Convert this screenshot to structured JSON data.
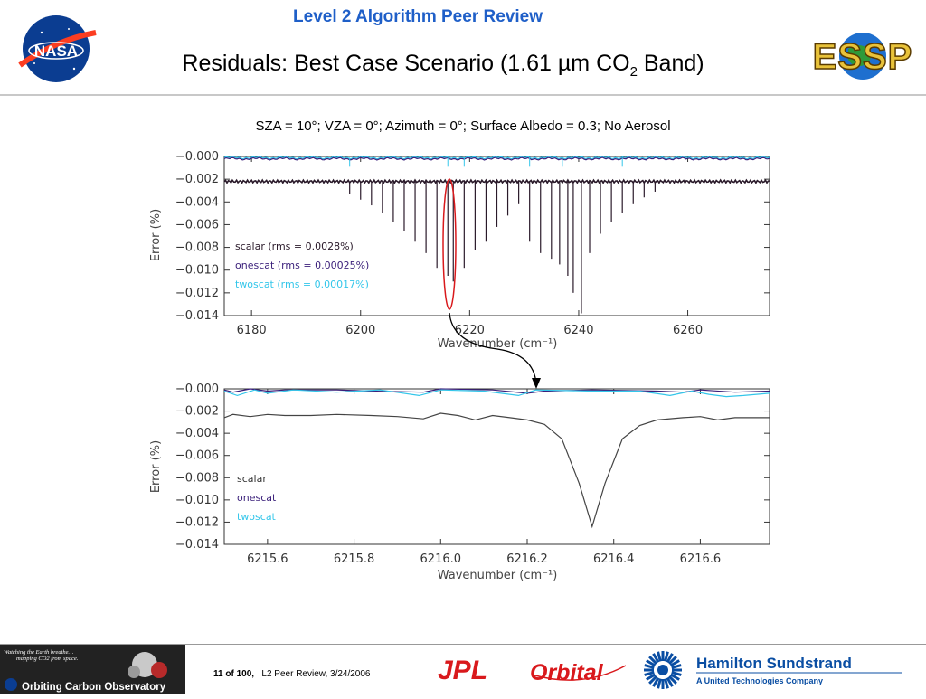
{
  "header": {
    "subtitle": "Level 2 Algorithm Peer Review",
    "title_main": "Residuals: Best Case Scenario (1.61 µm CO",
    "title_sub": "2",
    "title_end": " Band)",
    "logo_left": "NASA",
    "logo_right": "ESSP"
  },
  "caption": "SZA = 10°; VZA = 0°; Azimuth = 0°; Surface Albedo = 0.3; No Aerosol",
  "chart_data": [
    {
      "type": "line",
      "xlabel": "Wavenumber (cm⁻¹)",
      "ylabel": "Error (%)",
      "xlim": [
        6175,
        6275
      ],
      "ylim": [
        -0.014,
        0.0
      ],
      "x_ticks": [
        "6180",
        "6200",
        "6220",
        "6240",
        "6260"
      ],
      "y_ticks": [
        "−0.000",
        "−0.002",
        "−0.004",
        "−0.006",
        "−0.008",
        "−0.010",
        "−0.012",
        "−0.014"
      ],
      "series": [
        {
          "name": "scalar (rms = 0.0028%)",
          "color": "#2a1a2a",
          "baseline": -0.0022,
          "lines": [
            [
              6198,
              -0.0033
            ],
            [
              6200,
              -0.0038
            ],
            [
              6202,
              -0.0043
            ],
            [
              6204,
              -0.005
            ],
            [
              6206,
              -0.0058
            ],
            [
              6208,
              -0.0066
            ],
            [
              6210,
              -0.0075
            ],
            [
              6212,
              -0.0085
            ],
            [
              6214,
              -0.0098
            ],
            [
              6216,
              -0.0105
            ],
            [
              6217,
              -0.011
            ],
            [
              6219,
              -0.0098
            ],
            [
              6221,
              -0.0082
            ],
            [
              6223,
              -0.0075
            ],
            [
              6225,
              -0.0062
            ],
            [
              6227,
              -0.0052
            ],
            [
              6229,
              -0.0042
            ],
            [
              6231,
              -0.0075
            ],
            [
              6233,
              -0.0085
            ],
            [
              6235,
              -0.009
            ],
            [
              6236.5,
              -0.0095
            ],
            [
              6238,
              -0.0105
            ],
            [
              6239,
              -0.012
            ],
            [
              6240.5,
              -0.0138
            ],
            [
              6242,
              -0.0085
            ],
            [
              6244,
              -0.0068
            ],
            [
              6246,
              -0.0058
            ],
            [
              6248,
              -0.005
            ],
            [
              6250,
              -0.0042
            ],
            [
              6252,
              -0.0036
            ],
            [
              6254,
              -0.0031
            ]
          ]
        },
        {
          "name": "onescat (rms = 0.00025%)",
          "color": "#3a1f7a",
          "baseline": -0.0002
        },
        {
          "name": "twoscat (rms = 0.00017%)",
          "color": "#33c6ea",
          "baseline": -0.0001
        }
      ]
    },
    {
      "type": "line",
      "xlabel": "Wavenumber (cm⁻¹)",
      "ylabel": "Error (%)",
      "xlim": [
        6215.5,
        6216.76
      ],
      "ylim": [
        -0.014,
        0.0
      ],
      "x_ticks": [
        "6215.6",
        "6215.8",
        "6216.0",
        "6216.2",
        "6216.4",
        "6216.6"
      ],
      "y_ticks": [
        "−0.000",
        "−0.002",
        "−0.004",
        "−0.006",
        "−0.008",
        "−0.010",
        "−0.012",
        "−0.014"
      ],
      "series": [
        {
          "name": "scalar",
          "color": "#444444",
          "points": [
            [
              6215.5,
              -0.0026
            ],
            [
              6215.52,
              -0.0023
            ],
            [
              6215.56,
              -0.0025
            ],
            [
              6215.6,
              -0.0023
            ],
            [
              6215.64,
              -0.0024
            ],
            [
              6215.7,
              -0.0024
            ],
            [
              6215.76,
              -0.0023
            ],
            [
              6215.84,
              -0.0024
            ],
            [
              6215.9,
              -0.0025
            ],
            [
              6215.96,
              -0.0027
            ],
            [
              6216.0,
              -0.0022
            ],
            [
              6216.04,
              -0.0024
            ],
            [
              6216.08,
              -0.0028
            ],
            [
              6216.12,
              -0.0024
            ],
            [
              6216.16,
              -0.0026
            ],
            [
              6216.2,
              -0.0028
            ],
            [
              6216.24,
              -0.0032
            ],
            [
              6216.28,
              -0.0045
            ],
            [
              6216.32,
              -0.0085
            ],
            [
              6216.35,
              -0.0124
            ],
            [
              6216.38,
              -0.0085
            ],
            [
              6216.42,
              -0.0045
            ],
            [
              6216.46,
              -0.0033
            ],
            [
              6216.5,
              -0.0028
            ],
            [
              6216.56,
              -0.0026
            ],
            [
              6216.6,
              -0.0025
            ],
            [
              6216.64,
              -0.0028
            ],
            [
              6216.68,
              -0.0026
            ],
            [
              6216.76,
              -0.0026
            ]
          ]
        },
        {
          "name": "onescat",
          "color": "#3a1f7a",
          "points": [
            [
              6215.5,
              -0.0001
            ],
            [
              6215.52,
              -0.0003
            ],
            [
              6215.56,
              0.0
            ],
            [
              6215.6,
              -0.0002
            ],
            [
              6215.64,
              -0.0001
            ],
            [
              6215.76,
              -0.0001
            ],
            [
              6215.84,
              -0.0002
            ],
            [
              6215.96,
              -0.0003
            ],
            [
              6216.0,
              0.0
            ],
            [
              6216.12,
              -0.0001
            ],
            [
              6216.2,
              -0.0004
            ],
            [
              6216.24,
              -0.0002
            ],
            [
              6216.35,
              -0.0001
            ],
            [
              6216.5,
              -0.0002
            ],
            [
              6216.56,
              -0.0003
            ],
            [
              6216.6,
              -0.0001
            ],
            [
              6216.68,
              -0.0003
            ],
            [
              6216.76,
              -0.0002
            ]
          ]
        },
        {
          "name": "twoscat",
          "color": "#33c6ea",
          "points": [
            [
              6215.5,
              -0.0002
            ],
            [
              6215.53,
              -0.0006
            ],
            [
              6215.57,
              -0.0001
            ],
            [
              6215.6,
              -0.0004
            ],
            [
              6215.66,
              -0.0001
            ],
            [
              6215.76,
              -0.0003
            ],
            [
              6215.86,
              -0.0001
            ],
            [
              6215.95,
              -0.0006
            ],
            [
              6216.0,
              -0.0001
            ],
            [
              6216.1,
              -0.0002
            ],
            [
              6216.18,
              -0.0006
            ],
            [
              6216.22,
              -0.0001
            ],
            [
              6216.35,
              -0.0002
            ],
            [
              6216.46,
              -0.0002
            ],
            [
              6216.53,
              -0.0006
            ],
            [
              6216.58,
              -0.0002
            ],
            [
              6216.62,
              -0.0005
            ],
            [
              6216.66,
              -0.0007
            ],
            [
              6216.7,
              -0.0006
            ],
            [
              6216.76,
              -0.0004
            ]
          ]
        }
      ]
    }
  ],
  "footer": {
    "page_num": "11",
    "of_word": "of",
    "page_total": "100,",
    "event": "L2 Peer Review, 3/24/2006",
    "oco_tagline_1": "Watching the Earth breathe…",
    "oco_tagline_2": "mapping CO2 from space.",
    "oco_name": "Orbiting Carbon Observatory",
    "logo_jpl": "JPL",
    "logo_orbital": "Orbital",
    "logo_hs": "Hamilton Sundstrand",
    "logo_hs_sub": "A United Technologies Company"
  }
}
